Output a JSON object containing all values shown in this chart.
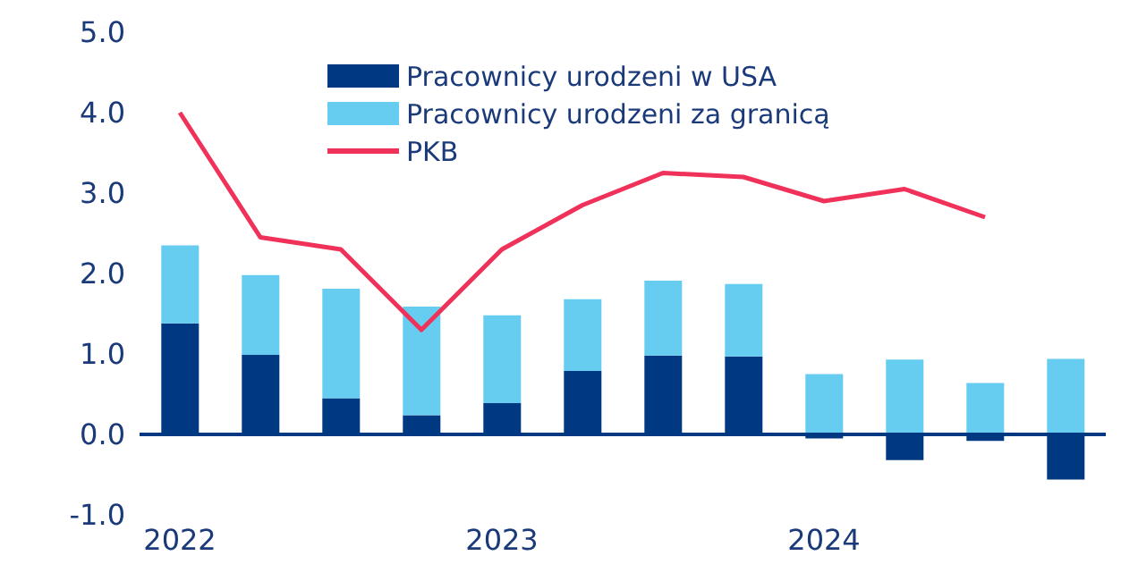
{
  "chart_data": {
    "type": "bar",
    "stacked": true,
    "categories": [
      "2022",
      null,
      null,
      null,
      "2023",
      null,
      null,
      null,
      "2024",
      null,
      null,
      null
    ],
    "series": [
      {
        "name": "Pracownicy urodzeni w USA",
        "color": "#003882",
        "values": [
          1.38,
          0.99,
          0.45,
          0.24,
          0.39,
          0.79,
          0.98,
          0.97,
          -0.05,
          -0.32,
          -0.08,
          -0.56
        ]
      },
      {
        "name": "Pracownicy urodzeni za granicą",
        "color": "#66ccf0",
        "values": [
          0.97,
          0.99,
          1.36,
          1.35,
          1.09,
          0.89,
          0.93,
          0.9,
          0.75,
          0.93,
          0.64,
          0.94
        ]
      },
      {
        "name": "PKB",
        "type": "line",
        "color": "#f0325a",
        "marker": "none",
        "values": [
          4.0,
          2.45,
          2.3,
          1.3,
          2.3,
          2.85,
          3.25,
          3.2,
          2.9,
          3.05,
          2.7,
          null
        ]
      }
    ],
    "ylim": [
      -1.0,
      5.0
    ],
    "yticks": [
      {
        "value": -1,
        "label": "-1.0"
      },
      {
        "value": 0,
        "label": "0.0"
      },
      {
        "value": 1,
        "label": "1.0"
      },
      {
        "value": 2,
        "label": "2.0"
      },
      {
        "value": 3,
        "label": "3.0"
      },
      {
        "value": 4,
        "label": "4.0"
      },
      {
        "value": 5,
        "label": "5.0"
      }
    ],
    "ref_lines": [
      {
        "axis": "y",
        "value": 0,
        "color": "#003882"
      }
    ],
    "grid": false,
    "legend": "top"
  }
}
